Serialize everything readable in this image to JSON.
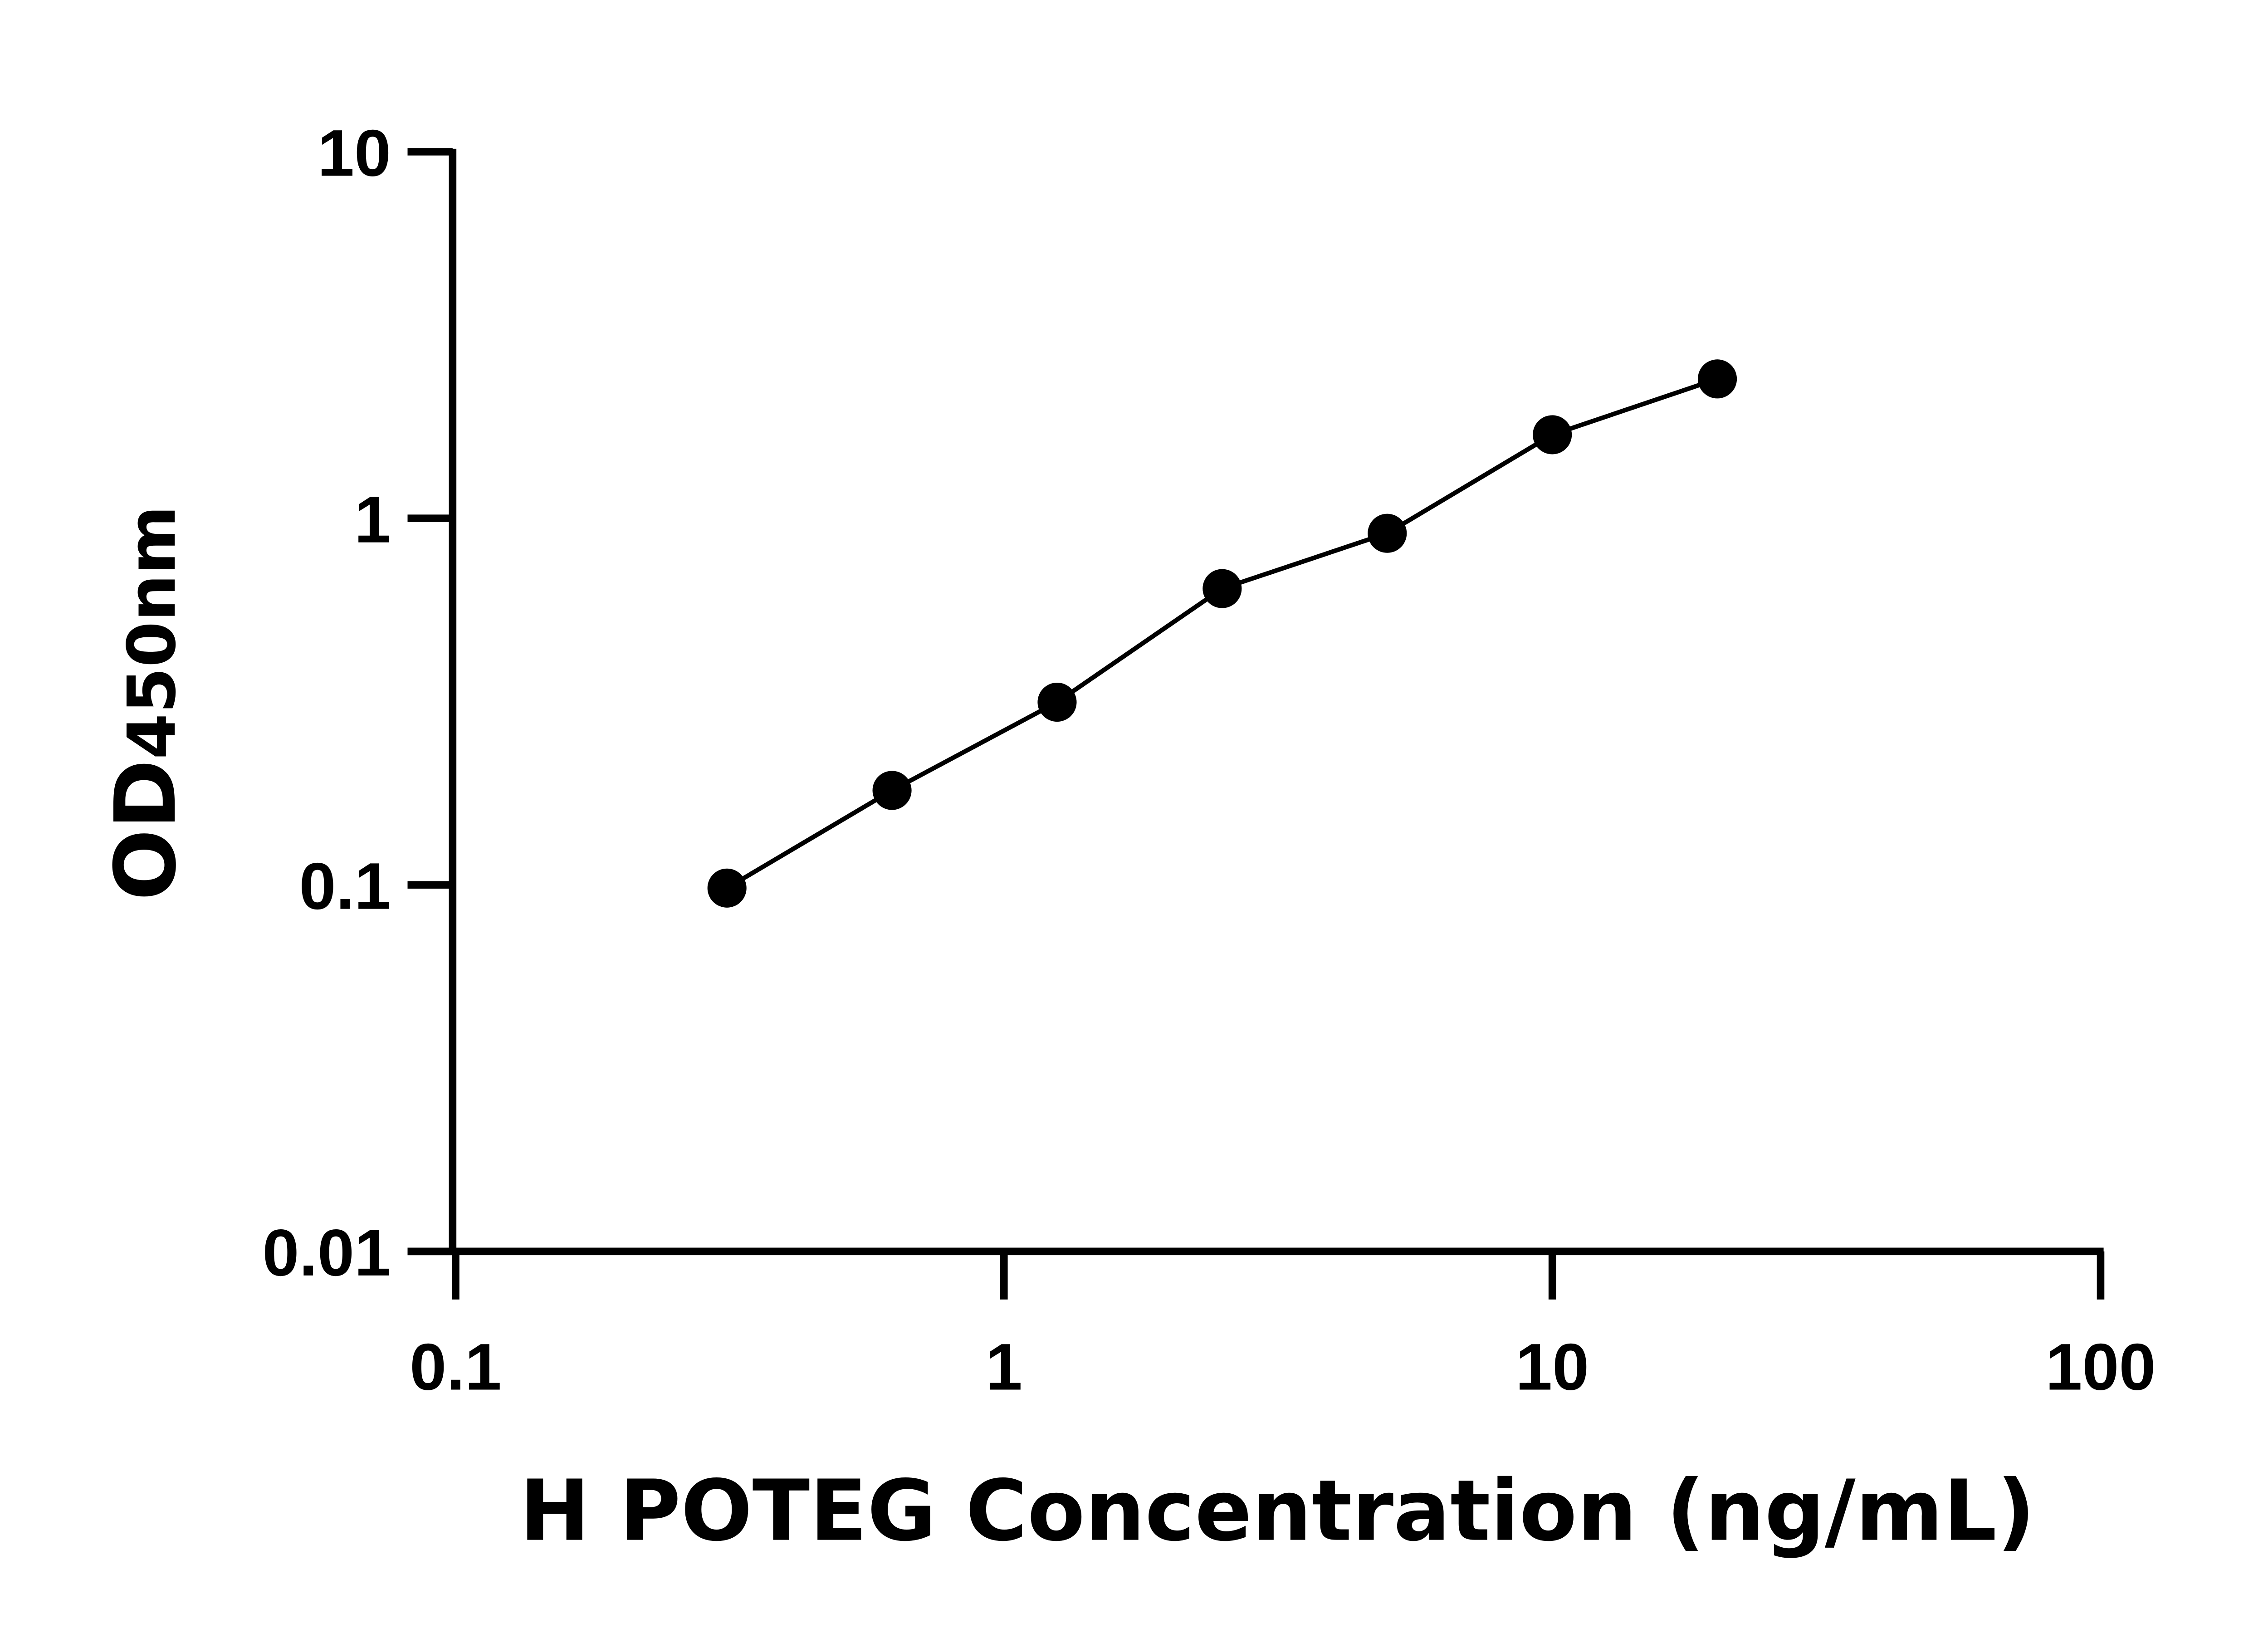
{
  "chart_data": {
    "type": "scatter",
    "xlabel": "H POTEG Concentration (ng/mL)",
    "ylabel": {
      "main": "OD",
      "subscript": "450nm"
    },
    "xscale": "log",
    "yscale": "log",
    "xlim": [
      0.1,
      100
    ],
    "ylim": [
      0.01,
      10
    ],
    "xticks": [
      "0.1",
      "1",
      "10",
      "100"
    ],
    "yticks": [
      "0.01",
      "0.1",
      "1",
      "10"
    ],
    "grid": false,
    "fit_line": true,
    "color": "#000000",
    "series": [
      {
        "x": [
          0.3125,
          0.625,
          1.25,
          2.5,
          5,
          10,
          20
        ],
        "y": [
          0.098,
          0.181,
          0.315,
          0.643,
          0.91,
          1.69,
          2.4
        ]
      }
    ]
  }
}
